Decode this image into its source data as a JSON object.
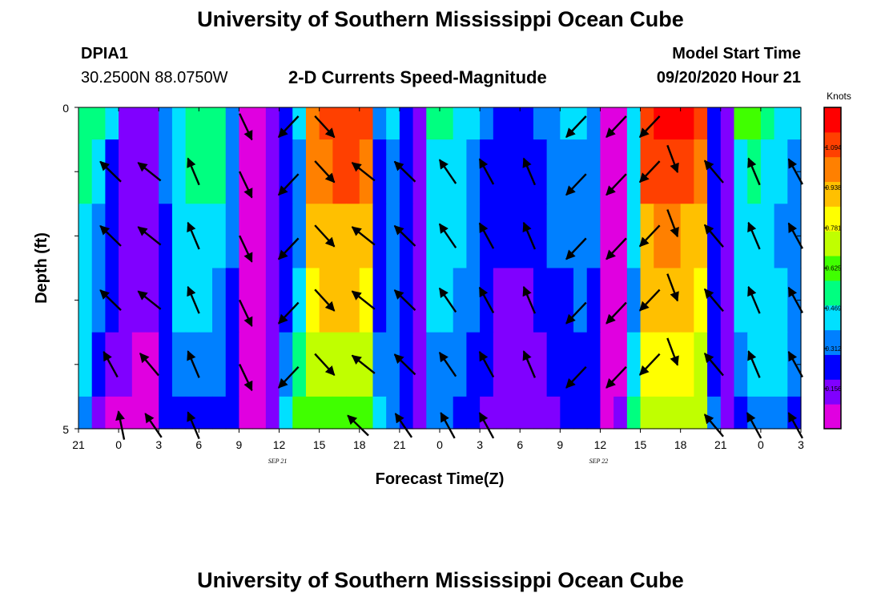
{
  "header": {
    "title": "University of Southern Mississippi Ocean Cube",
    "station": "DPIA1",
    "coords": "30.2500N 88.0750W",
    "subtitle": "2-D Currents Speed-Magnitude",
    "model_start_label": "Model Start Time",
    "model_start_value": "09/20/2020 Hour 21"
  },
  "footer": {
    "title": "University of Southern Mississippi Ocean Cube"
  },
  "chart_data": {
    "type": "heatmap",
    "xlabel": "Forecast Time(Z)",
    "ylabel": "Depth (ft)",
    "x_tick_labels": [
      "21",
      "0",
      "3",
      "6",
      "9",
      "12",
      "15",
      "18",
      "21",
      "0",
      "3",
      "6",
      "9",
      "12",
      "15",
      "18",
      "21",
      "0",
      "3"
    ],
    "date_labels": [
      {
        "at_hours": 15,
        "text": "SEP 21"
      },
      {
        "at_hours": 39,
        "text": "SEP 22"
      }
    ],
    "xlim_hours": [
      0,
      54
    ],
    "ylim_ft": [
      0,
      5
    ],
    "y_tick_labels": [
      "0",
      "5"
    ],
    "colorbar": {
      "label": "Knots",
      "ticks": [
        "0.156",
        "0.312",
        "0.469",
        "0.625",
        "0.781",
        "0.938",
        "1.094"
      ],
      "range": [
        0,
        1.25
      ],
      "colors": [
        "#e000e0",
        "#8000ff",
        "#0000ff",
        "#0080ff",
        "#00e0ff",
        "#00ff80",
        "#40ff00",
        "#c0ff00",
        "#ffff00",
        "#ffc000",
        "#ff8000",
        "#ff4000",
        "#ff0000"
      ]
    },
    "depth_bins_ft": [
      0,
      0.5,
      1.5,
      2.5,
      3.5,
      4.5,
      5
    ],
    "speed_knots": [
      [
        0.55,
        0.5,
        0.45,
        0.18,
        0.14,
        0.16,
        0.35,
        0.42,
        0.5,
        0.5,
        0.52,
        0.35,
        0.08,
        0.06,
        0.16,
        0.22,
        0.4,
        1.05,
        1.12,
        1.13,
        1.12,
        1.1,
        0.3,
        0.4,
        0.2,
        0.18,
        0.55,
        0.5,
        0.42,
        0.4,
        0.3,
        0.28,
        0.26,
        0.26,
        0.3,
        0.35,
        0.4,
        0.42,
        0.35,
        0.08,
        0.08,
        0.45,
        1.12,
        1.18,
        1.18,
        1.16,
        1.1,
        0.2,
        0.1,
        0.6,
        0.65,
        0.55,
        0.45,
        0.4
      ],
      [
        0.5,
        0.4,
        0.2,
        0.12,
        0.1,
        0.12,
        0.3,
        0.48,
        0.52,
        0.52,
        0.5,
        0.32,
        0.08,
        0.06,
        0.14,
        0.22,
        0.3,
        1.0,
        1.05,
        1.06,
        1.06,
        1.05,
        0.25,
        0.3,
        0.2,
        0.16,
        0.4,
        0.42,
        0.4,
        0.35,
        0.28,
        0.25,
        0.24,
        0.24,
        0.26,
        0.3,
        0.32,
        0.34,
        0.3,
        0.08,
        0.08,
        0.4,
        1.06,
        1.12,
        1.14,
        1.12,
        1.05,
        0.2,
        0.1,
        0.45,
        0.5,
        0.48,
        0.4,
        0.35
      ],
      [
        0.45,
        0.35,
        0.22,
        0.14,
        0.1,
        0.12,
        0.28,
        0.45,
        0.48,
        0.48,
        0.45,
        0.3,
        0.08,
        0.06,
        0.14,
        0.22,
        0.35,
        0.95,
        0.95,
        0.95,
        0.95,
        0.92,
        0.25,
        0.3,
        0.2,
        0.16,
        0.45,
        0.45,
        0.4,
        0.35,
        0.25,
        0.2,
        0.2,
        0.22,
        0.25,
        0.3,
        0.32,
        0.34,
        0.3,
        0.08,
        0.08,
        0.4,
        0.95,
        0.98,
        0.98,
        0.96,
        0.92,
        0.2,
        0.1,
        0.42,
        0.45,
        0.45,
        0.38,
        0.35
      ],
      [
        0.42,
        0.3,
        0.2,
        0.12,
        0.1,
        0.1,
        0.28,
        0.4,
        0.4,
        0.4,
        0.38,
        0.28,
        0.08,
        0.06,
        0.14,
        0.22,
        0.45,
        0.85,
        0.88,
        0.88,
        0.88,
        0.85,
        0.25,
        0.3,
        0.2,
        0.16,
        0.4,
        0.4,
        0.38,
        0.3,
        0.2,
        0.18,
        0.18,
        0.18,
        0.2,
        0.24,
        0.28,
        0.3,
        0.28,
        0.08,
        0.08,
        0.38,
        0.88,
        0.9,
        0.9,
        0.88,
        0.85,
        0.2,
        0.1,
        0.4,
        0.45,
        0.45,
        0.4,
        0.35
      ],
      [
        0.4,
        0.25,
        0.15,
        0.1,
        0.08,
        0.08,
        0.25,
        0.35,
        0.35,
        0.35,
        0.34,
        0.25,
        0.08,
        0.06,
        0.14,
        0.3,
        0.55,
        0.7,
        0.75,
        0.75,
        0.75,
        0.72,
        0.3,
        0.3,
        0.2,
        0.16,
        0.35,
        0.36,
        0.34,
        0.28,
        0.2,
        0.16,
        0.16,
        0.16,
        0.18,
        0.22,
        0.25,
        0.26,
        0.25,
        0.08,
        0.08,
        0.4,
        0.8,
        0.82,
        0.82,
        0.8,
        0.75,
        0.2,
        0.1,
        0.35,
        0.4,
        0.42,
        0.4,
        0.32
      ],
      [
        0.3,
        0.15,
        0.08,
        0.06,
        0.06,
        0.08,
        0.22,
        0.28,
        0.28,
        0.28,
        0.26,
        0.22,
        0.08,
        0.06,
        0.14,
        0.4,
        0.62,
        0.62,
        0.65,
        0.65,
        0.65,
        0.62,
        0.4,
        0.3,
        0.2,
        0.15,
        0.3,
        0.3,
        0.28,
        0.24,
        0.18,
        0.15,
        0.15,
        0.15,
        0.16,
        0.18,
        0.2,
        0.22,
        0.22,
        0.08,
        0.1,
        0.5,
        0.7,
        0.72,
        0.72,
        0.7,
        0.68,
        0.3,
        0.12,
        0.25,
        0.3,
        0.35,
        0.35,
        0.28
      ]
    ],
    "vectors": [
      {
        "x": 12.5,
        "y": 0.3,
        "a": 2.7
      },
      {
        "x": 15.7,
        "y": 0.3,
        "a": 3.9
      },
      {
        "x": 18.4,
        "y": 0.3,
        "a": 2.4
      },
      {
        "x": 37.2,
        "y": 0.3,
        "a": 3.9
      },
      {
        "x": 40.2,
        "y": 0.3,
        "a": 3.9
      },
      {
        "x": 42.7,
        "y": 0.3,
        "a": 3.9
      },
      {
        "x": 2.4,
        "y": 1.0,
        "a": -0.8
      },
      {
        "x": 5.3,
        "y": 1.0,
        "a": -0.9
      },
      {
        "x": 8.6,
        "y": 1.0,
        "a": -0.4
      },
      {
        "x": 12.5,
        "y": 1.2,
        "a": 2.7
      },
      {
        "x": 15.7,
        "y": 1.2,
        "a": 3.9
      },
      {
        "x": 18.4,
        "y": 1.0,
        "a": 2.4
      },
      {
        "x": 21.3,
        "y": 1.0,
        "a": -0.9
      },
      {
        "x": 24.4,
        "y": 1.0,
        "a": -0.8
      },
      {
        "x": 27.6,
        "y": 1.0,
        "a": -0.6
      },
      {
        "x": 30.5,
        "y": 1.0,
        "a": -0.5
      },
      {
        "x": 33.7,
        "y": 1.0,
        "a": -0.4
      },
      {
        "x": 37.2,
        "y": 1.2,
        "a": 3.9
      },
      {
        "x": 40.2,
        "y": 1.2,
        "a": 3.9
      },
      {
        "x": 42.7,
        "y": 1.0,
        "a": 3.9
      },
      {
        "x": 44.4,
        "y": 0.8,
        "a": -3.5
      },
      {
        "x": 47.5,
        "y": 1.0,
        "a": -0.7
      },
      {
        "x": 50.5,
        "y": 1.0,
        "a": -0.4
      },
      {
        "x": 53.6,
        "y": 1.0,
        "a": -0.5
      },
      {
        "x": 2.4,
        "y": 2.0,
        "a": -0.8
      },
      {
        "x": 5.3,
        "y": 2.0,
        "a": -0.9
      },
      {
        "x": 8.6,
        "y": 2.0,
        "a": -0.4
      },
      {
        "x": 12.5,
        "y": 2.2,
        "a": 2.7
      },
      {
        "x": 15.7,
        "y": 2.2,
        "a": 3.9
      },
      {
        "x": 18.4,
        "y": 2.0,
        "a": 2.4
      },
      {
        "x": 21.3,
        "y": 2.0,
        "a": -0.9
      },
      {
        "x": 24.4,
        "y": 2.0,
        "a": -0.8
      },
      {
        "x": 27.6,
        "y": 2.0,
        "a": -0.6
      },
      {
        "x": 30.5,
        "y": 2.0,
        "a": -0.5
      },
      {
        "x": 33.7,
        "y": 2.0,
        "a": -0.4
      },
      {
        "x": 37.2,
        "y": 2.2,
        "a": 3.9
      },
      {
        "x": 40.2,
        "y": 2.2,
        "a": 3.9
      },
      {
        "x": 42.7,
        "y": 2.0,
        "a": 3.9
      },
      {
        "x": 44.4,
        "y": 1.8,
        "a": -3.5
      },
      {
        "x": 47.5,
        "y": 2.0,
        "a": -0.7
      },
      {
        "x": 50.5,
        "y": 2.0,
        "a": -0.4
      },
      {
        "x": 53.6,
        "y": 2.0,
        "a": -0.5
      },
      {
        "x": 2.4,
        "y": 3.0,
        "a": -0.8
      },
      {
        "x": 5.3,
        "y": 3.0,
        "a": -0.9
      },
      {
        "x": 8.6,
        "y": 3.0,
        "a": -0.4
      },
      {
        "x": 12.5,
        "y": 3.2,
        "a": 2.7
      },
      {
        "x": 15.7,
        "y": 3.2,
        "a": 3.9
      },
      {
        "x": 18.4,
        "y": 3.0,
        "a": 2.4
      },
      {
        "x": 21.3,
        "y": 3.0,
        "a": -0.9
      },
      {
        "x": 24.4,
        "y": 3.0,
        "a": -0.8
      },
      {
        "x": 27.6,
        "y": 3.0,
        "a": -0.6
      },
      {
        "x": 30.5,
        "y": 3.0,
        "a": -0.5
      },
      {
        "x": 33.7,
        "y": 3.0,
        "a": -0.4
      },
      {
        "x": 37.2,
        "y": 3.2,
        "a": 3.9
      },
      {
        "x": 40.2,
        "y": 3.2,
        "a": 3.9
      },
      {
        "x": 42.7,
        "y": 3.0,
        "a": 3.9
      },
      {
        "x": 44.4,
        "y": 2.8,
        "a": -3.5
      },
      {
        "x": 47.5,
        "y": 3.0,
        "a": -0.7
      },
      {
        "x": 50.5,
        "y": 3.0,
        "a": -0.4
      },
      {
        "x": 53.6,
        "y": 3.0,
        "a": -0.5
      },
      {
        "x": 2.4,
        "y": 4.0,
        "a": -0.5
      },
      {
        "x": 5.3,
        "y": 4.0,
        "a": -0.7
      },
      {
        "x": 8.6,
        "y": 4.0,
        "a": -0.4
      },
      {
        "x": 12.5,
        "y": 4.2,
        "a": 2.7
      },
      {
        "x": 15.7,
        "y": 4.2,
        "a": 3.9
      },
      {
        "x": 18.4,
        "y": 4.0,
        "a": 2.4
      },
      {
        "x": 21.3,
        "y": 4.0,
        "a": -0.9
      },
      {
        "x": 24.4,
        "y": 4.0,
        "a": -0.8
      },
      {
        "x": 27.6,
        "y": 4.0,
        "a": -0.6
      },
      {
        "x": 30.5,
        "y": 4.0,
        "a": -0.5
      },
      {
        "x": 33.7,
        "y": 4.0,
        "a": -0.4
      },
      {
        "x": 37.2,
        "y": 4.2,
        "a": 3.9
      },
      {
        "x": 40.2,
        "y": 4.2,
        "a": 3.9
      },
      {
        "x": 42.7,
        "y": 4.0,
        "a": 3.9
      },
      {
        "x": 44.4,
        "y": 3.8,
        "a": -3.5
      },
      {
        "x": 47.5,
        "y": 4.0,
        "a": -0.7
      },
      {
        "x": 50.5,
        "y": 4.0,
        "a": -0.4
      },
      {
        "x": 53.6,
        "y": 4.0,
        "a": -0.5
      },
      {
        "x": 3.2,
        "y": 4.95,
        "a": -0.2
      },
      {
        "x": 5.6,
        "y": 4.95,
        "a": -0.6
      },
      {
        "x": 8.6,
        "y": 4.95,
        "a": -0.4
      },
      {
        "x": 20.9,
        "y": 4.95,
        "a": -0.8
      },
      {
        "x": 24.3,
        "y": 4.95,
        "a": -0.6
      },
      {
        "x": 27.6,
        "y": 4.95,
        "a": -0.5
      },
      {
        "x": 30.5,
        "y": 4.95,
        "a": -0.5
      },
      {
        "x": 47.5,
        "y": 4.95,
        "a": -0.7
      },
      {
        "x": 50.5,
        "y": 4.95,
        "a": -0.5
      },
      {
        "x": 53.6,
        "y": 4.95,
        "a": -0.5
      }
    ]
  }
}
